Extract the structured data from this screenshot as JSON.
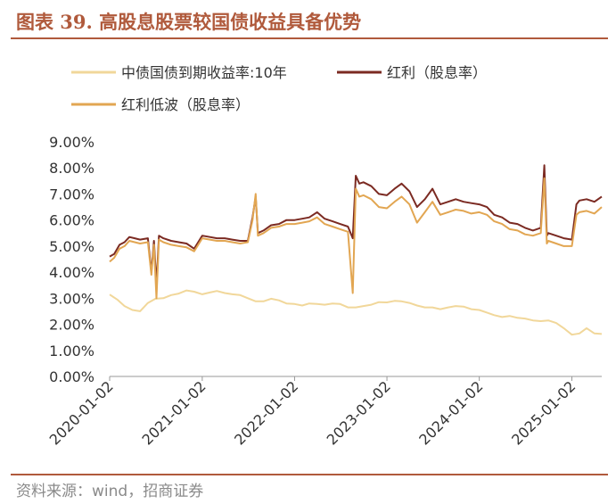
{
  "title": "图表 39. 高股息股票较国债收益具备优势",
  "source": "资料来源：wind，招商证券",
  "chart_data": {
    "type": "line",
    "ylim": [
      0,
      9
    ],
    "yticks": [
      "0.00%",
      "1.00%",
      "2.00%",
      "3.00%",
      "4.00%",
      "5.00%",
      "6.00%",
      "7.00%",
      "8.00%",
      "9.00%"
    ],
    "xlim": [
      "2020-01-02",
      "2025-04-30"
    ],
    "xticks": [
      "2020-01-02",
      "2021-01-02",
      "2022-01-02",
      "2023-01-02",
      "2024-01-02",
      "2025-01-02"
    ],
    "legend_position": "top",
    "series": [
      {
        "name": "中债国债到期收益率:10年",
        "color": "#f1d79a",
        "points": [
          [
            "2020-01-02",
            3.14
          ],
          [
            "2020-02-01",
            2.95
          ],
          [
            "2020-03-01",
            2.7
          ],
          [
            "2020-04-01",
            2.55
          ],
          [
            "2020-05-01",
            2.5
          ],
          [
            "2020-06-01",
            2.82
          ],
          [
            "2020-07-01",
            2.98
          ],
          [
            "2020-08-01",
            3.0
          ],
          [
            "2020-09-01",
            3.12
          ],
          [
            "2020-10-01",
            3.18
          ],
          [
            "2020-11-01",
            3.3
          ],
          [
            "2020-12-01",
            3.25
          ],
          [
            "2021-01-02",
            3.15
          ],
          [
            "2021-02-01",
            3.22
          ],
          [
            "2021-03-01",
            3.28
          ],
          [
            "2021-04-01",
            3.2
          ],
          [
            "2021-05-01",
            3.15
          ],
          [
            "2021-06-01",
            3.12
          ],
          [
            "2021-07-01",
            3.0
          ],
          [
            "2021-08-01",
            2.88
          ],
          [
            "2021-09-01",
            2.88
          ],
          [
            "2021-10-01",
            2.98
          ],
          [
            "2021-11-01",
            2.92
          ],
          [
            "2021-12-01",
            2.8
          ],
          [
            "2022-01-02",
            2.78
          ],
          [
            "2022-02-01",
            2.72
          ],
          [
            "2022-03-01",
            2.8
          ],
          [
            "2022-04-01",
            2.78
          ],
          [
            "2022-05-01",
            2.75
          ],
          [
            "2022-06-01",
            2.8
          ],
          [
            "2022-07-01",
            2.78
          ],
          [
            "2022-08-01",
            2.65
          ],
          [
            "2022-09-01",
            2.65
          ],
          [
            "2022-10-01",
            2.7
          ],
          [
            "2022-11-01",
            2.75
          ],
          [
            "2022-12-01",
            2.85
          ],
          [
            "2023-01-02",
            2.84
          ],
          [
            "2023-02-01",
            2.9
          ],
          [
            "2023-03-01",
            2.88
          ],
          [
            "2023-04-01",
            2.82
          ],
          [
            "2023-05-01",
            2.72
          ],
          [
            "2023-06-01",
            2.65
          ],
          [
            "2023-07-01",
            2.65
          ],
          [
            "2023-08-01",
            2.58
          ],
          [
            "2023-09-01",
            2.65
          ],
          [
            "2023-10-01",
            2.7
          ],
          [
            "2023-11-01",
            2.68
          ],
          [
            "2023-12-01",
            2.58
          ],
          [
            "2024-01-02",
            2.55
          ],
          [
            "2024-02-01",
            2.45
          ],
          [
            "2024-03-01",
            2.35
          ],
          [
            "2024-04-01",
            2.28
          ],
          [
            "2024-05-01",
            2.32
          ],
          [
            "2024-06-01",
            2.25
          ],
          [
            "2024-07-01",
            2.22
          ],
          [
            "2024-08-01",
            2.15
          ],
          [
            "2024-09-01",
            2.12
          ],
          [
            "2024-10-01",
            2.15
          ],
          [
            "2024-11-01",
            2.05
          ],
          [
            "2024-12-01",
            1.85
          ],
          [
            "2025-01-02",
            1.6
          ],
          [
            "2025-02-01",
            1.65
          ],
          [
            "2025-03-01",
            1.85
          ],
          [
            "2025-04-01",
            1.65
          ],
          [
            "2025-04-30",
            1.63
          ]
        ]
      },
      {
        "name": "红利（股息率）",
        "color": "#7b2a22",
        "points": [
          [
            "2020-01-02",
            4.6
          ],
          [
            "2020-01-20",
            4.7
          ],
          [
            "2020-02-10",
            5.05
          ],
          [
            "2020-03-01",
            5.15
          ],
          [
            "2020-03-20",
            5.35
          ],
          [
            "2020-04-10",
            5.3
          ],
          [
            "2020-05-01",
            5.25
          ],
          [
            "2020-06-01",
            5.3
          ],
          [
            "2020-06-15",
            4.0
          ],
          [
            "2020-06-25",
            5.2
          ],
          [
            "2020-07-05",
            3.5
          ],
          [
            "2020-07-15",
            5.4
          ],
          [
            "2020-08-01",
            5.3
          ],
          [
            "2020-09-01",
            5.2
          ],
          [
            "2020-10-01",
            5.15
          ],
          [
            "2020-11-01",
            5.1
          ],
          [
            "2020-12-01",
            4.9
          ],
          [
            "2021-01-02",
            5.4
          ],
          [
            "2021-02-01",
            5.35
          ],
          [
            "2021-03-01",
            5.3
          ],
          [
            "2021-04-01",
            5.3
          ],
          [
            "2021-05-01",
            5.25
          ],
          [
            "2021-06-01",
            5.2
          ],
          [
            "2021-07-01",
            5.2
          ],
          [
            "2021-07-20",
            6.1
          ],
          [
            "2021-08-01",
            6.9
          ],
          [
            "2021-08-10",
            5.5
          ],
          [
            "2021-09-01",
            5.6
          ],
          [
            "2021-10-01",
            5.8
          ],
          [
            "2021-11-01",
            5.85
          ],
          [
            "2021-12-01",
            6.0
          ],
          [
            "2022-01-02",
            6.0
          ],
          [
            "2022-02-01",
            6.05
          ],
          [
            "2022-03-01",
            6.1
          ],
          [
            "2022-04-01",
            6.3
          ],
          [
            "2022-05-01",
            6.05
          ],
          [
            "2022-06-01",
            5.95
          ],
          [
            "2022-07-01",
            5.85
          ],
          [
            "2022-08-01",
            5.75
          ],
          [
            "2022-08-20",
            5.3
          ],
          [
            "2022-09-01",
            7.7
          ],
          [
            "2022-09-15",
            7.4
          ],
          [
            "2022-10-01",
            7.45
          ],
          [
            "2022-11-01",
            7.3
          ],
          [
            "2022-12-01",
            7.0
          ],
          [
            "2023-01-02",
            6.95
          ],
          [
            "2023-02-01",
            7.2
          ],
          [
            "2023-03-01",
            7.4
          ],
          [
            "2023-04-01",
            7.1
          ],
          [
            "2023-05-01",
            6.5
          ],
          [
            "2023-06-01",
            6.8
          ],
          [
            "2023-07-01",
            7.2
          ],
          [
            "2023-08-01",
            6.6
          ],
          [
            "2023-09-01",
            6.7
          ],
          [
            "2023-10-01",
            6.8
          ],
          [
            "2023-11-01",
            6.7
          ],
          [
            "2023-12-01",
            6.65
          ],
          [
            "2024-01-02",
            6.6
          ],
          [
            "2024-02-01",
            6.5
          ],
          [
            "2024-03-01",
            6.2
          ],
          [
            "2024-04-01",
            6.1
          ],
          [
            "2024-05-01",
            5.9
          ],
          [
            "2024-06-01",
            5.85
          ],
          [
            "2024-07-01",
            5.7
          ],
          [
            "2024-08-01",
            5.6
          ],
          [
            "2024-09-01",
            5.7
          ],
          [
            "2024-09-15",
            8.1
          ],
          [
            "2024-09-25",
            5.4
          ],
          [
            "2024-10-01",
            5.5
          ],
          [
            "2024-11-01",
            5.4
          ],
          [
            "2024-12-01",
            5.3
          ],
          [
            "2025-01-02",
            5.25
          ],
          [
            "2025-01-20",
            6.6
          ],
          [
            "2025-02-01",
            6.75
          ],
          [
            "2025-03-01",
            6.8
          ],
          [
            "2025-04-01",
            6.7
          ],
          [
            "2025-04-30",
            6.9
          ]
        ]
      },
      {
        "name": "红利低波（股息率）",
        "color": "#e2a652",
        "points": [
          [
            "2020-01-02",
            4.4
          ],
          [
            "2020-01-20",
            4.55
          ],
          [
            "2020-02-10",
            4.9
          ],
          [
            "2020-03-01",
            5.0
          ],
          [
            "2020-03-20",
            5.2
          ],
          [
            "2020-04-10",
            5.15
          ],
          [
            "2020-05-01",
            5.1
          ],
          [
            "2020-06-01",
            5.15
          ],
          [
            "2020-06-15",
            3.9
          ],
          [
            "2020-06-25",
            5.05
          ],
          [
            "2020-07-05",
            3.0
          ],
          [
            "2020-07-15",
            5.25
          ],
          [
            "2020-08-01",
            5.15
          ],
          [
            "2020-09-01",
            5.05
          ],
          [
            "2020-10-01",
            5.0
          ],
          [
            "2020-11-01",
            4.95
          ],
          [
            "2020-12-01",
            4.8
          ],
          [
            "2021-01-02",
            5.3
          ],
          [
            "2021-02-01",
            5.25
          ],
          [
            "2021-03-01",
            5.2
          ],
          [
            "2021-04-01",
            5.2
          ],
          [
            "2021-05-01",
            5.15
          ],
          [
            "2021-06-01",
            5.1
          ],
          [
            "2021-07-01",
            5.15
          ],
          [
            "2021-07-20",
            6.0
          ],
          [
            "2021-08-01",
            7.0
          ],
          [
            "2021-08-10",
            5.4
          ],
          [
            "2021-09-01",
            5.5
          ],
          [
            "2021-10-01",
            5.7
          ],
          [
            "2021-11-01",
            5.75
          ],
          [
            "2021-12-01",
            5.85
          ],
          [
            "2022-01-02",
            5.85
          ],
          [
            "2022-02-01",
            5.9
          ],
          [
            "2022-03-01",
            5.95
          ],
          [
            "2022-04-01",
            6.1
          ],
          [
            "2022-05-01",
            5.85
          ],
          [
            "2022-06-01",
            5.75
          ],
          [
            "2022-07-01",
            5.65
          ],
          [
            "2022-08-01",
            5.55
          ],
          [
            "2022-08-20",
            3.2
          ],
          [
            "2022-09-01",
            7.2
          ],
          [
            "2022-09-15",
            6.9
          ],
          [
            "2022-10-01",
            6.95
          ],
          [
            "2022-11-01",
            6.8
          ],
          [
            "2022-12-01",
            6.5
          ],
          [
            "2023-01-02",
            6.45
          ],
          [
            "2023-02-01",
            6.7
          ],
          [
            "2023-03-01",
            6.9
          ],
          [
            "2023-04-01",
            6.6
          ],
          [
            "2023-05-01",
            5.9
          ],
          [
            "2023-06-01",
            6.3
          ],
          [
            "2023-07-01",
            6.7
          ],
          [
            "2023-08-01",
            6.2
          ],
          [
            "2023-09-01",
            6.3
          ],
          [
            "2023-10-01",
            6.4
          ],
          [
            "2023-11-01",
            6.35
          ],
          [
            "2023-12-01",
            6.25
          ],
          [
            "2024-01-02",
            6.3
          ],
          [
            "2024-02-01",
            6.2
          ],
          [
            "2024-03-01",
            5.95
          ],
          [
            "2024-04-01",
            5.85
          ],
          [
            "2024-05-01",
            5.65
          ],
          [
            "2024-06-01",
            5.6
          ],
          [
            "2024-07-01",
            5.45
          ],
          [
            "2024-08-01",
            5.4
          ],
          [
            "2024-09-01",
            5.5
          ],
          [
            "2024-09-15",
            7.6
          ],
          [
            "2024-09-25",
            5.1
          ],
          [
            "2024-10-01",
            5.2
          ],
          [
            "2024-11-01",
            5.1
          ],
          [
            "2024-12-01",
            5.0
          ],
          [
            "2025-01-02",
            5.0
          ],
          [
            "2025-01-20",
            6.2
          ],
          [
            "2025-02-01",
            6.3
          ],
          [
            "2025-03-01",
            6.35
          ],
          [
            "2025-04-01",
            6.25
          ],
          [
            "2025-04-30",
            6.5
          ]
        ]
      }
    ]
  }
}
